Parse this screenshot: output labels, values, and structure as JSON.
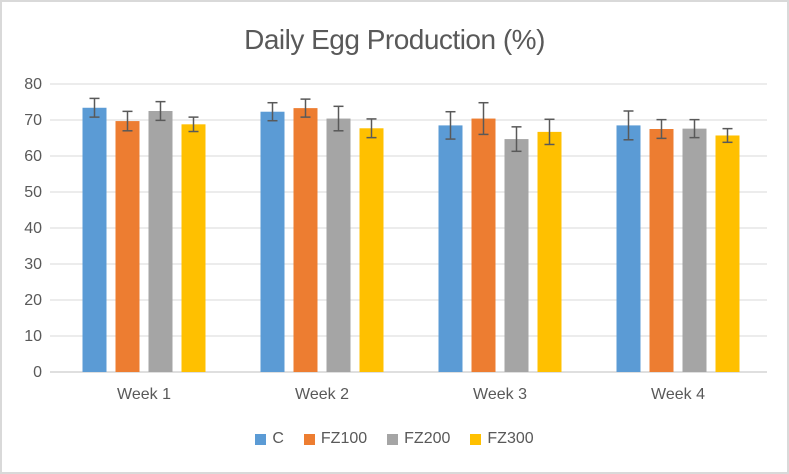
{
  "figure": {
    "background": "#ffffff",
    "border_color": "#d9d9d9"
  },
  "chart_data": {
    "type": "bar",
    "title": "Daily Egg Production (%)",
    "xlabel": "",
    "ylabel": "",
    "categories": [
      "Week 1",
      "Week 2",
      "Week 3",
      "Week 4"
    ],
    "series": [
      {
        "name": "C",
        "color": "#5B9BD5",
        "values": [
          73.4,
          72.3,
          68.5,
          68.5
        ],
        "errors": [
          2.6,
          2.5,
          3.8,
          4.0
        ]
      },
      {
        "name": "FZ100",
        "color": "#ED7D31",
        "values": [
          69.7,
          73.3,
          70.4,
          67.5
        ],
        "errors": [
          2.7,
          2.5,
          4.4,
          2.6
        ]
      },
      {
        "name": "FZ200",
        "color": "#A5A5A5",
        "values": [
          72.5,
          70.4,
          64.7,
          67.6
        ],
        "errors": [
          2.6,
          3.4,
          3.4,
          2.5
        ]
      },
      {
        "name": "FZ300",
        "color": "#FFC000",
        "values": [
          68.8,
          67.7,
          66.7,
          65.7
        ],
        "errors": [
          2.0,
          2.6,
          3.5,
          1.9
        ]
      }
    ],
    "ylim": [
      0,
      80
    ],
    "ytick_step": 10,
    "grid": true,
    "legend_position": "bottom",
    "colors": {
      "gridline": "#d9d9d9",
      "axis_line": "#bfbfbf",
      "text": "#595959",
      "error_bar": "#595959"
    }
  }
}
